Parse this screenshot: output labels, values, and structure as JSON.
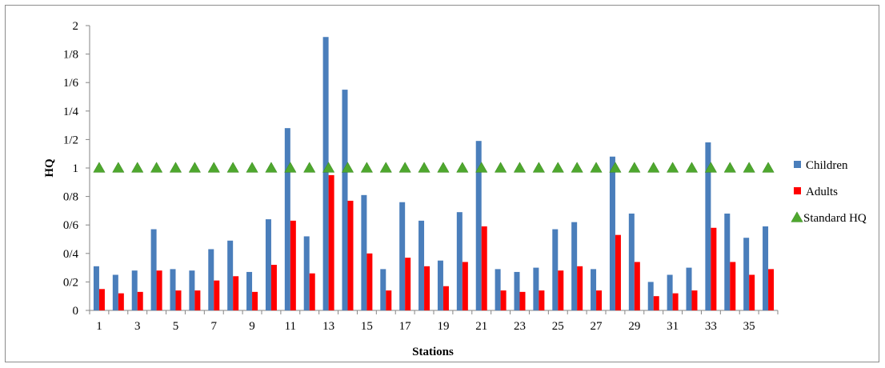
{
  "chart_data": {
    "type": "bar",
    "xlabel": "Stations",
    "ylabel": "HQ",
    "ylim": [
      0,
      2
    ],
    "y_tick_values": [
      0,
      0.2,
      0.4,
      0.6,
      0.8,
      1.0,
      1.2,
      1.4,
      1.6,
      1.8,
      2.0
    ],
    "y_tick_labels": [
      "0",
      "0/2",
      "0/4",
      "0/6",
      "0/8",
      "1",
      "1/2",
      "1/4",
      "1/6",
      "1/8",
      "2"
    ],
    "categories": [
      1,
      2,
      3,
      4,
      5,
      6,
      7,
      8,
      9,
      10,
      11,
      12,
      13,
      14,
      15,
      16,
      17,
      18,
      19,
      20,
      21,
      22,
      23,
      24,
      25,
      26,
      27,
      28,
      29,
      30,
      31,
      32,
      33,
      34,
      35,
      36
    ],
    "x_tick_labels": [
      "1",
      "3",
      "5",
      "7",
      "9",
      "11",
      "13",
      "15",
      "17",
      "19",
      "21",
      "23",
      "25",
      "27",
      "29",
      "31",
      "33",
      "35"
    ],
    "series": [
      {
        "name": "Children",
        "color": "#4a7ebb",
        "kind": "bar",
        "values": [
          0.31,
          0.25,
          0.28,
          0.57,
          0.29,
          0.28,
          0.43,
          0.49,
          0.27,
          0.64,
          1.28,
          0.52,
          1.92,
          1.55,
          0.81,
          0.29,
          0.76,
          0.63,
          0.35,
          0.69,
          1.19,
          0.29,
          0.27,
          0.3,
          0.57,
          0.62,
          0.29,
          1.08,
          0.68,
          0.2,
          0.25,
          0.3,
          1.18,
          0.68,
          0.51,
          0.59
        ]
      },
      {
        "name": "Adults",
        "color": "#ff0000",
        "kind": "bar",
        "values": [
          0.15,
          0.12,
          0.13,
          0.28,
          0.14,
          0.14,
          0.21,
          0.24,
          0.13,
          0.32,
          0.63,
          0.26,
          0.95,
          0.77,
          0.4,
          0.14,
          0.37,
          0.31,
          0.17,
          0.34,
          0.59,
          0.14,
          0.13,
          0.14,
          0.28,
          0.31,
          0.14,
          0.53,
          0.34,
          0.1,
          0.12,
          0.14,
          0.58,
          0.34,
          0.25,
          0.29
        ]
      },
      {
        "name": "Standard HQ",
        "color": "#4ea72e",
        "kind": "marker",
        "marker": "triangle",
        "values": [
          1,
          1,
          1,
          1,
          1,
          1,
          1,
          1,
          1,
          1,
          1,
          1,
          1,
          1,
          1,
          1,
          1,
          1,
          1,
          1,
          1,
          1,
          1,
          1,
          1,
          1,
          1,
          1,
          1,
          1,
          1,
          1,
          1,
          1,
          1,
          1
        ]
      }
    ],
    "legend_position": "right",
    "grid": false
  }
}
